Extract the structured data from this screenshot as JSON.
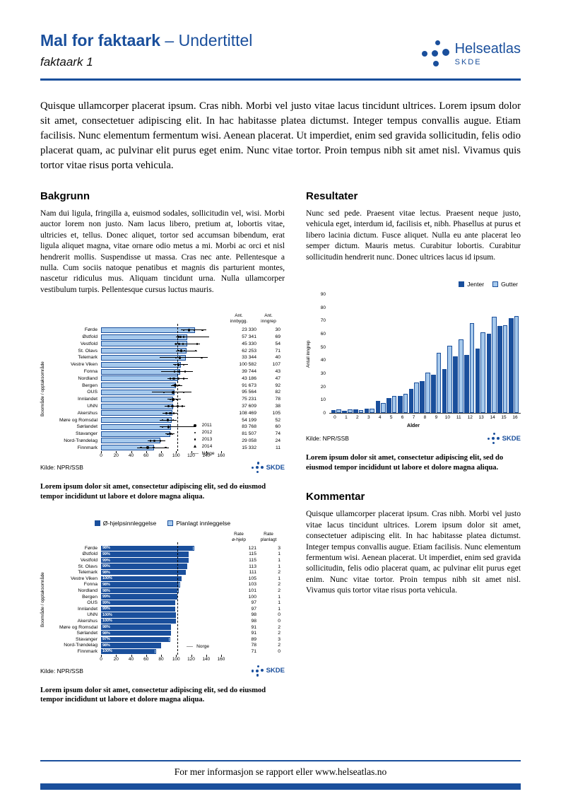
{
  "header": {
    "title_main": "Mal for faktaark",
    "title_rest": "– Undertittel",
    "subtitle": "faktaark 1",
    "brand": {
      "name": "Helseatlas",
      "org": "SKDE"
    }
  },
  "intro": "Quisque ullamcorper placerat ipsum. Cras nibh. Morbi vel justo vitae lacus tincidunt ultrices. Lorem ipsum dolor sit amet, consectetuer adipiscing elit. In hac habitasse platea dictumst. Integer tempus convallis augue. Etiam facilisis. Nunc elementum fermentum wisi. Aenean placerat. Ut imperdiet, enim sed gravida sollicitudin, felis odio placerat quam, ac pulvinar elit purus eget enim. Nunc vitae tortor. Proin tempus nibh sit amet nisl. Vivamus quis tortor vitae risus porta vehicula.",
  "sections": {
    "bakgrunn": {
      "heading": "Bakgrunn",
      "body": "Nam dui ligula, fringilla a, euismod sodales, sollicitudin vel, wisi. Morbi auctor lorem non justo. Nam lacus libero, pretium at, lobortis vitae, ultricies et, tellus. Donec aliquet, tortor sed accumsan bibendum, erat ligula aliquet magna, vitae ornare odio metus a mi. Morbi ac orci et nisl hendrerit mollis. Suspendisse ut massa. Cras nec ante. Pellentesque a nulla. Cum sociis natoque penatibus et magnis dis parturient montes, nascetur ridiculus mus. Aliquam tincidunt urna. Nulla ullamcorper vestibulum turpis. Pellentesque cursus luctus mauris."
    },
    "resultater": {
      "heading": "Resultater",
      "body": "Nunc sed pede. Praesent vitae lectus. Praesent neque justo, vehicula eget, interdum id, facilisis et, nibh. Phasellus at purus et libero lacinia dictum. Fusce aliquet. Nulla eu ante placerat leo semper dictum. Mauris metus. Curabitur lobortis. Curabitur sollicitudin hendrerit nunc. Donec ultrices lacus id ipsum."
    },
    "kommentar": {
      "heading": "Kommentar",
      "body": "Quisque ullamcorper placerat ipsum. Cras nibh. Morbi vel justo vitae lacus tincidunt ultrices. Lorem ipsum dolor sit amet, consectetuer adipiscing elit. In hac habitasse platea dictumst. Integer tempus convallis augue. Etiam facilisis. Nunc elementum fermentum wisi. Aenean placerat. Ut imperdiet, enim sed gravida sollicitudin, felis odio placerat quam, ac pulvinar elit purus eget enim. Nunc vitae tortor. Proin tempus nibh sit amet nisl. Vivamus quis tortor vitae risus porta vehicula."
    }
  },
  "caption": "Lorem ipsum dolor sit amet, consectetur adipiscing elit, sed do eiusmod tempor incididunt ut labore et dolore magna aliqua.",
  "footer": {
    "text": "For mer informasjon se rapport eller www.helseatlas.no"
  },
  "colors": {
    "brand": "#1a4f9c",
    "light_blue": "#a6c9ec"
  },
  "chart_data": [
    {
      "type": "bar",
      "orientation": "horizontal",
      "ylabel": "Boområde / opptaksområde",
      "xlim": [
        0,
        160
      ],
      "xticks": [
        0,
        20,
        40,
        60,
        80,
        100,
        120,
        140,
        160
      ],
      "norge_line": 102,
      "col_headers": [
        "Ant.\ninnbygg.",
        "Ant.\ninngrep"
      ],
      "legend": [
        "2011",
        "2012",
        "2013",
        "2014",
        "Norge"
      ],
      "source": "Kilde: NPR/SSB",
      "rows": [
        {
          "label": "Førde",
          "value": 125,
          "innbygg": "23 330",
          "inngrep": "30",
          "whisker": [
            106,
            140
          ],
          "dots": [
            110,
            117,
            124,
            135
          ]
        },
        {
          "label": "Østfold",
          "value": 115,
          "innbygg": "57 341",
          "inngrep": "69",
          "whisker": [
            100,
            144
          ],
          "dots": [
            103,
            106,
            110
          ]
        },
        {
          "label": "Vestfold",
          "value": 115,
          "innbygg": "45 330",
          "inngrep": "54",
          "whisker": [
            98,
            132
          ],
          "dots": [
            100,
            104,
            109,
            128
          ]
        },
        {
          "label": "St. Olavs",
          "value": 114,
          "innbygg": "62 253",
          "inngrep": "71",
          "whisker": [
            100,
            128
          ],
          "dots": [
            103,
            107,
            111,
            126
          ]
        },
        {
          "label": "Telemark",
          "value": 113,
          "innbygg": "33 344",
          "inngrep": "40",
          "whisker": [
            78,
            142
          ],
          "dots": [
            100,
            105,
            134
          ]
        },
        {
          "label": "Vestre Viken",
          "value": 106,
          "innbygg": "100 582",
          "inngrep": "107",
          "whisker": [
            96,
            116
          ],
          "dots": [
            99,
            103,
            110
          ]
        },
        {
          "label": "Fonna",
          "value": 105,
          "innbygg": "39 744",
          "inngrep": "43",
          "whisker": [
            80,
            122
          ],
          "dots": [
            98,
            104,
            112
          ]
        },
        {
          "label": "Nordland",
          "value": 103,
          "innbygg": "43 186",
          "inngrep": "47",
          "whisker": [
            88,
            116
          ],
          "dots": [
            92,
            97,
            103,
            110
          ]
        },
        {
          "label": "Bergen",
          "value": 100,
          "innbygg": "91 673",
          "inngrep": "92",
          "whisker": [
            93,
            108
          ],
          "dots": [
            96,
            99,
            104
          ]
        },
        {
          "label": "OUS",
          "value": 98,
          "innbygg": "95 564",
          "inngrep": "82",
          "whisker": [
            68,
            120
          ],
          "dots": [
            84,
            96,
            110
          ]
        },
        {
          "label": "Innlandet",
          "value": 96,
          "innbygg": "75 231",
          "inngrep": "78",
          "whisker": [
            88,
            106
          ],
          "dots": [
            92,
            96,
            101
          ]
        },
        {
          "label": "UNN",
          "value": 96,
          "innbygg": "37 609",
          "inngrep": "38",
          "whisker": [
            85,
            112
          ],
          "dots": [
            90,
            95,
            102,
            108
          ]
        },
        {
          "label": "Akershus",
          "value": 95,
          "innbygg": "108 469",
          "inngrep": "105",
          "whisker": [
            82,
            102
          ],
          "dots": [
            87,
            92,
            97
          ]
        },
        {
          "label": "Møre og Romsdal",
          "value": 94,
          "innbygg": "54 199",
          "inngrep": "52",
          "whisker": [
            78,
            101
          ],
          "dots": [
            82,
            89,
            96
          ]
        },
        {
          "label": "Sørlandet",
          "value": 93,
          "innbygg": "83 768",
          "inngrep": "60",
          "whisker": [
            78,
            126
          ],
          "dots": [
            82,
            90
          ]
        },
        {
          "label": "Stavanger",
          "value": 92,
          "innbygg": "81 507",
          "inngrep": "74",
          "whisker": [
            86,
            98
          ],
          "dots": [
            89,
            92,
            95
          ]
        },
        {
          "label": "Nord-Trøndelag",
          "value": 79,
          "innbygg": "29 058",
          "inngrep": "24",
          "whisker": [
            62,
            86
          ],
          "dots": [
            66,
            71,
            79
          ]
        },
        {
          "label": "Finnmark",
          "value": 71,
          "innbygg": "15 332",
          "inngrep": "11",
          "whisker": [
            48,
            90
          ],
          "dots": [
            53,
            62,
            70,
            86
          ]
        }
      ]
    },
    {
      "type": "bar",
      "grouped": true,
      "categories": [
        "0",
        "1",
        "2",
        "3",
        "4",
        "5",
        "6",
        "7",
        "8",
        "9",
        "10",
        "11",
        "12",
        "13",
        "14",
        "15",
        "16"
      ],
      "series": [
        {
          "name": "Jenter",
          "style": "dark",
          "values": [
            2,
            1.5,
            2.5,
            3.5,
            9,
            11.5,
            13,
            18,
            24,
            29,
            33,
            43,
            44,
            49,
            60,
            66,
            72
          ]
        },
        {
          "name": "Gutter",
          "style": "light",
          "values": [
            2.5,
            2.5,
            2,
            3.5,
            7.5,
            13,
            14.5,
            23,
            30.5,
            45.5,
            51,
            56,
            68,
            61,
            73,
            66.5,
            73.5
          ]
        }
      ],
      "xlabel": "Alder",
      "ylabel": "Antall inngrep",
      "ylim": [
        0,
        90
      ],
      "yticks": [
        0,
        10,
        20,
        30,
        40,
        50,
        60,
        70,
        80,
        90
      ],
      "source": "Kilde: NPR/SSB"
    },
    {
      "type": "bar",
      "orientation": "horizontal",
      "stacked": true,
      "legend": [
        "Ø-hjelpsinnleggelse",
        "Planlagt innleggelse"
      ],
      "ylabel": "Boområde / opptaksområde",
      "xlim": [
        0,
        160
      ],
      "xticks": [
        0,
        20,
        40,
        60,
        80,
        100,
        120,
        140,
        160
      ],
      "norge_line": 102,
      "norge_label": "Norge",
      "col_headers": [
        "Rate\nø-hjelp",
        "Rate\nplanlagt"
      ],
      "source": "Kilde: NPR/SSB",
      "rows": [
        {
          "label": "Førde",
          "ohjelp": 121,
          "planlagt": 3,
          "pct": "98%"
        },
        {
          "label": "Østfold",
          "ohjelp": 115,
          "planlagt": 1,
          "pct": "99%"
        },
        {
          "label": "Vestfold",
          "ohjelp": 115,
          "planlagt": 1,
          "pct": "99%"
        },
        {
          "label": "St. Olavs",
          "ohjelp": 113,
          "planlagt": 1,
          "pct": "99%"
        },
        {
          "label": "Telemark",
          "ohjelp": 111,
          "planlagt": 2,
          "pct": "98%"
        },
        {
          "label": "Vestre Viken",
          "ohjelp": 105,
          "planlagt": 1,
          "pct": "100%"
        },
        {
          "label": "Fonna",
          "ohjelp": 103,
          "planlagt": 2,
          "pct": "98%"
        },
        {
          "label": "Nordland",
          "ohjelp": 101,
          "planlagt": 2,
          "pct": "98%"
        },
        {
          "label": "Bergen",
          "ohjelp": 100,
          "planlagt": 1,
          "pct": "99%"
        },
        {
          "label": "OUS",
          "ohjelp": 97,
          "planlagt": 1,
          "pct": "99%"
        },
        {
          "label": "Innlandet",
          "ohjelp": 97,
          "planlagt": 1,
          "pct": "99%"
        },
        {
          "label": "UNN",
          "ohjelp": 98,
          "planlagt": 0,
          "pct": "100%"
        },
        {
          "label": "Akershus",
          "ohjelp": 98,
          "planlagt": 0,
          "pct": "100%"
        },
        {
          "label": "Møre og Romsdal",
          "ohjelp": 91,
          "planlagt": 2,
          "pct": "98%"
        },
        {
          "label": "Sørlandet",
          "ohjelp": 91,
          "planlagt": 2,
          "pct": "98%"
        },
        {
          "label": "Stavanger",
          "ohjelp": 89,
          "planlagt": 3,
          "pct": "97%"
        },
        {
          "label": "Nord-Trøndelag",
          "ohjelp": 78,
          "planlagt": 2,
          "pct": "98%"
        },
        {
          "label": "Finnmark",
          "ohjelp": 71,
          "planlagt": 0,
          "pct": "100%"
        }
      ]
    }
  ]
}
